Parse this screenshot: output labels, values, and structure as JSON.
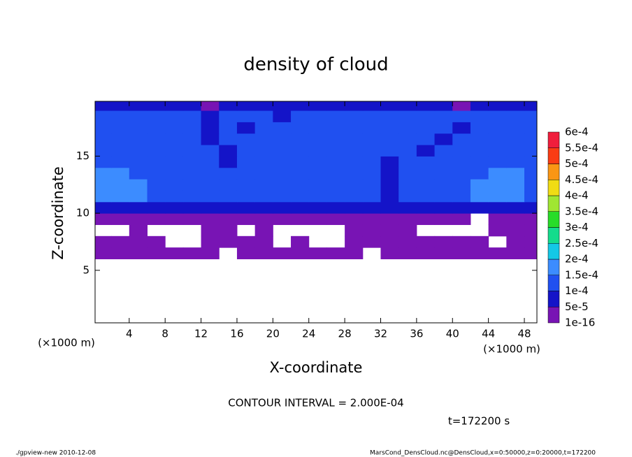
{
  "chart_data": {
    "type": "contour",
    "title": "density of cloud",
    "xlabel": "X-coordinate",
    "ylabel": "Z-coordinate",
    "x_unit_label": "(×1000 m)",
    "y_unit_label": "(×1000 m)",
    "contour_interval": "CONTOUR INTERVAL = 2.000E-04",
    "time_label": "t=172200 s",
    "footer_left": "./gpview-new  2010-12-08",
    "footer_right": "MarsCond_DensCloud.nc@DensCloud,x=0:50000,z=0:20000,t=172200",
    "xlim": [
      0.2,
      49.4
    ],
    "ylim": [
      0.4,
      19.8
    ],
    "xticks": [
      4,
      8,
      12,
      16,
      20,
      24,
      28,
      32,
      36,
      40,
      44,
      48
    ],
    "yticks": [
      5,
      10,
      15
    ],
    "x": [
      1,
      3,
      5,
      7,
      9,
      11,
      13,
      15,
      17,
      19,
      21,
      23,
      25,
      27,
      29,
      31,
      33,
      35,
      37,
      39,
      41,
      43,
      45,
      47,
      49
    ],
    "z": [
      6.5,
      7.5,
      8.5,
      9.5,
      10.5,
      11.5,
      12.5,
      13.5,
      14.5,
      15.5,
      16.5,
      17.5,
      18.5,
      19.5
    ],
    "values": [
      [
        3e-05,
        3e-05,
        3e-05,
        3e-05,
        3e-05,
        3e-05,
        3e-05,
        null,
        3e-05,
        3e-05,
        3e-05,
        3e-05,
        3e-05,
        3e-05,
        3e-05,
        null,
        3e-05,
        3e-05,
        3e-05,
        3e-05,
        3e-05,
        3e-05,
        3e-05,
        3e-05,
        3e-05
      ],
      [
        3e-05,
        3e-05,
        3e-05,
        3e-05,
        null,
        null,
        3e-05,
        3e-05,
        3e-05,
        3e-05,
        null,
        3e-05,
        null,
        null,
        3e-05,
        3e-05,
        3e-05,
        3e-05,
        3e-05,
        3e-05,
        3e-05,
        3e-05,
        null,
        3e-05,
        3e-05
      ],
      [
        null,
        null,
        3e-05,
        null,
        null,
        null,
        3e-05,
        3e-05,
        null,
        3e-05,
        null,
        null,
        null,
        null,
        3e-05,
        3e-05,
        3e-05,
        3e-05,
        null,
        null,
        null,
        null,
        3e-05,
        3e-05,
        3e-05
      ],
      [
        3e-05,
        3e-05,
        3e-05,
        3e-05,
        3e-05,
        3e-05,
        3e-05,
        3e-05,
        3e-05,
        3e-05,
        3e-05,
        3e-05,
        3e-05,
        3e-05,
        3e-05,
        3e-05,
        3e-05,
        3e-05,
        3e-05,
        3e-05,
        3e-05,
        null,
        3e-05,
        3e-05,
        3e-05
      ],
      [
        7e-05,
        7e-05,
        7e-05,
        7e-05,
        7e-05,
        7e-05,
        7e-05,
        7e-05,
        7e-05,
        7e-05,
        7e-05,
        7e-05,
        7e-05,
        7e-05,
        7e-05,
        7e-05,
        7e-05,
        7e-05,
        7e-05,
        7e-05,
        7e-05,
        7e-05,
        7e-05,
        7e-05,
        7e-05
      ],
      [
        0.00016,
        0.00016,
        0.00016,
        0.00012,
        0.00012,
        0.00012,
        0.00012,
        0.00012,
        0.00012,
        0.00012,
        0.00012,
        0.00012,
        0.00012,
        0.00012,
        0.00012,
        0.00012,
        7e-05,
        0.00012,
        0.00012,
        0.00012,
        0.00012,
        0.00016,
        0.00016,
        0.00016,
        0.00012
      ],
      [
        0.00016,
        0.00016,
        0.00016,
        0.00012,
        0.00012,
        0.00012,
        0.00012,
        0.00012,
        0.00012,
        0.00012,
        0.00012,
        0.00012,
        0.00012,
        0.00012,
        0.00012,
        0.00012,
        7e-05,
        0.00012,
        0.00012,
        0.00012,
        0.00012,
        0.00016,
        0.00016,
        0.00016,
        0.00012
      ],
      [
        0.00016,
        0.00016,
        0.00012,
        0.00012,
        0.00012,
        0.00012,
        0.00012,
        0.00012,
        0.00012,
        0.00012,
        0.00012,
        0.00012,
        0.00012,
        0.00012,
        0.00012,
        0.00012,
        7e-05,
        0.00012,
        0.00012,
        0.00012,
        0.00012,
        0.00012,
        0.00016,
        0.00016,
        0.00012
      ],
      [
        0.00012,
        0.00012,
        0.00012,
        0.00012,
        0.00012,
        0.00012,
        0.00012,
        7e-05,
        0.00012,
        0.00012,
        0.00012,
        0.00012,
        0.00012,
        0.00012,
        0.00012,
        0.00012,
        7e-05,
        0.00012,
        0.00012,
        0.00012,
        0.00012,
        0.00012,
        0.00012,
        0.00012,
        0.00012
      ],
      [
        0.00012,
        0.00012,
        0.00012,
        0.00012,
        0.00012,
        0.00012,
        0.00012,
        7e-05,
        0.00012,
        0.00012,
        0.00012,
        0.00012,
        0.00012,
        0.00012,
        0.00012,
        0.00012,
        0.00012,
        0.00012,
        7e-05,
        0.00012,
        0.00012,
        0.00012,
        0.00012,
        0.00012,
        0.00012
      ],
      [
        0.00012,
        0.00012,
        0.00012,
        0.00012,
        0.00012,
        0.00012,
        7e-05,
        0.00012,
        0.00012,
        0.00012,
        0.00012,
        0.00012,
        0.00012,
        0.00012,
        0.00012,
        0.00012,
        0.00012,
        0.00012,
        0.00012,
        7e-05,
        0.00012,
        0.00012,
        0.00012,
        0.00012,
        0.00012
      ],
      [
        0.00012,
        0.00012,
        0.00012,
        0.00012,
        0.00012,
        0.00012,
        7e-05,
        0.00012,
        7e-05,
        0.00012,
        0.00012,
        0.00012,
        0.00012,
        0.00012,
        0.00012,
        0.00012,
        0.00012,
        0.00012,
        0.00012,
        0.00012,
        7e-05,
        0.00012,
        0.00012,
        0.00012,
        0.00012
      ],
      [
        0.00012,
        0.00012,
        0.00012,
        0.00012,
        0.00012,
        0.00012,
        7e-05,
        0.00012,
        0.00012,
        0.00012,
        7e-05,
        0.00012,
        0.00012,
        0.00012,
        0.00012,
        0.00012,
        0.00012,
        0.00012,
        0.00012,
        0.00012,
        0.00012,
        0.00012,
        0.00012,
        0.00012,
        0.00012
      ],
      [
        7e-05,
        7e-05,
        7e-05,
        7e-05,
        7e-05,
        7e-05,
        3e-05,
        7e-05,
        7e-05,
        7e-05,
        7e-05,
        7e-05,
        7e-05,
        7e-05,
        7e-05,
        7e-05,
        7e-05,
        7e-05,
        7e-05,
        7e-05,
        3e-05,
        7e-05,
        7e-05,
        7e-05,
        7e-05
      ]
    ],
    "colorbar": {
      "levels": [
        1e-16,
        {
          "value": 5e-05,
          "label": "5e-5"
        },
        {
          "value": 0.0001,
          "label": "1e-4"
        },
        {
          "value": 0.00015,
          "label": "1.5e-4"
        },
        {
          "value": 0.0002,
          "label": "2e-4"
        },
        {
          "value": 0.00025,
          "label": "2.5e-4"
        },
        {
          "value": 0.0003,
          "label": "3e-4"
        },
        {
          "value": 0.00035,
          "label": "3.5e-4"
        },
        {
          "value": 0.0004,
          "label": "4e-4"
        },
        {
          "value": 0.00045,
          "label": "4.5e-4"
        },
        {
          "value": 0.0005,
          "label": "5e-4"
        },
        {
          "value": 0.00055,
          "label": "5.5e-4"
        },
        {
          "value": 0.0006,
          "label": "6e-4"
        }
      ],
      "colors": [
        "#7814b4",
        "#1414c8",
        "#2050f0",
        "#3c8cff",
        "#14c8e6",
        "#14dc8c",
        "#28dc28",
        "#a0e632",
        "#f0dc14",
        "#fa9614",
        "#fa3c14",
        "#f01e3c",
        "#ff8c8c"
      ]
    }
  }
}
